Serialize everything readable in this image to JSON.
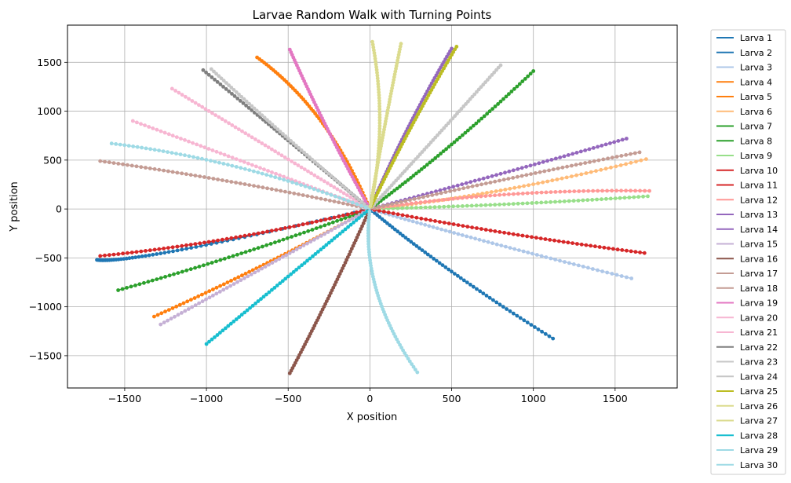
{
  "chart_data": {
    "type": "line",
    "title": "Larvae Random Walk with Turning Points",
    "xlabel": "X position",
    "ylabel": "Y position",
    "xlim": [
      -1850,
      1880
    ],
    "ylim": [
      -1830,
      1880
    ],
    "xticks": [
      -1500,
      -1000,
      -500,
      0,
      500,
      1000,
      1500
    ],
    "yticks": [
      -1500,
      -1000,
      -500,
      0,
      500,
      1000,
      1500
    ],
    "grid": true,
    "legend_position": "outside-right",
    "series": [
      {
        "name": "Larva 1",
        "color": "#1f77b4",
        "end": [
          -1670,
          -520
        ],
        "turn": [
          -1150,
          -415
        ]
      },
      {
        "name": "Larva 2",
        "color": "#1f77b4",
        "end": [
          1120,
          -1325
        ],
        "turn": [
          500,
          -640
        ]
      },
      {
        "name": "Larva 3",
        "color": "#aec7e8",
        "end": [
          1600,
          -710
        ],
        "turn": [
          750,
          -350
        ]
      },
      {
        "name": "Larva 4",
        "color": "#ff7f0e",
        "end": [
          -690,
          1550
        ],
        "turn": [
          -300,
          900
        ]
      },
      {
        "name": "Larva 5",
        "color": "#ff7f0e",
        "end": [
          -1320,
          -1100
        ],
        "turn": [
          -650,
          -570
        ]
      },
      {
        "name": "Larva 6",
        "color": "#ffbb78",
        "end": [
          1690,
          510
        ],
        "turn": [
          800,
          190
        ]
      },
      {
        "name": "Larva 7",
        "color": "#2ca02c",
        "end": [
          1000,
          1410
        ],
        "turn": [
          500,
          660
        ]
      },
      {
        "name": "Larva 8",
        "color": "#2ca02c",
        "end": [
          -1540,
          -830
        ],
        "turn": [
          -760,
          -440
        ]
      },
      {
        "name": "Larva 9",
        "color": "#98df8a",
        "end": [
          1700,
          130
        ],
        "turn": [
          850,
          50
        ]
      },
      {
        "name": "Larva 10",
        "color": "#d62728",
        "end": [
          1680,
          -450
        ],
        "turn": [
          850,
          -250
        ]
      },
      {
        "name": "Larva 11",
        "color": "#d62728",
        "end": [
          -1650,
          -480
        ],
        "turn": [
          -820,
          -290
        ]
      },
      {
        "name": "Larva 12",
        "color": "#ff9896",
        "end": [
          1710,
          185
        ],
        "turn": [
          850,
          150
        ]
      },
      {
        "name": "Larva 13",
        "color": "#9467bd",
        "end": [
          500,
          1640
        ],
        "turn": [
          230,
          820
        ]
      },
      {
        "name": "Larva 14",
        "color": "#9467bd",
        "end": [
          1570,
          720
        ],
        "turn": [
          800,
          360
        ]
      },
      {
        "name": "Larva 15",
        "color": "#c5b0d5",
        "end": [
          -1280,
          -1180
        ],
        "turn": [
          -640,
          -590
        ]
      },
      {
        "name": "Larva 16",
        "color": "#8c564b",
        "end": [
          -490,
          -1680
        ],
        "turn": [
          -240,
          -860
        ]
      },
      {
        "name": "Larva 17",
        "color": "#c49c94",
        "end": [
          1650,
          580
        ],
        "turn": [
          820,
          300
        ]
      },
      {
        "name": "Larva 18",
        "color": "#c49c94",
        "end": [
          -1650,
          490
        ],
        "turn": [
          -820,
          270
        ]
      },
      {
        "name": "Larva 19",
        "color": "#e377c2",
        "end": [
          -490,
          1630
        ],
        "turn": [
          -260,
          820
        ]
      },
      {
        "name": "Larva 20",
        "color": "#f7b6d2",
        "end": [
          -1450,
          900
        ],
        "turn": [
          -720,
          450
        ]
      },
      {
        "name": "Larva 21",
        "color": "#f7b6d2",
        "end": [
          -1210,
          1230
        ],
        "turn": [
          -600,
          610
        ]
      },
      {
        "name": "Larva 22",
        "color": "#7f7f7f",
        "end": [
          -1020,
          1420
        ],
        "turn": [
          -500,
          700
        ]
      },
      {
        "name": "Larva 23",
        "color": "#c7c7c7",
        "end": [
          -970,
          1430
        ],
        "turn": [
          -500,
          720
        ]
      },
      {
        "name": "Larva 24",
        "color": "#c7c7c7",
        "end": [
          800,
          1470
        ],
        "turn": [
          400,
          730
        ]
      },
      {
        "name": "Larva 25",
        "color": "#bcbd22",
        "end": [
          530,
          1660
        ],
        "turn": [
          250,
          830
        ]
      },
      {
        "name": "Larva 26",
        "color": "#dbdb8d",
        "end": [
          15,
          1710
        ],
        "turn": [
          60,
          850
        ]
      },
      {
        "name": "Larva 27",
        "color": "#dbdb8d",
        "end": [
          190,
          1690
        ],
        "turn": [
          90,
          840
        ]
      },
      {
        "name": "Larva 28",
        "color": "#17becf",
        "end": [
          -1000,
          -1380
        ],
        "turn": [
          -500,
          -690
        ]
      },
      {
        "name": "Larva 29",
        "color": "#9edae5",
        "end": [
          290,
          -1670
        ],
        "turn": [
          40,
          -830
        ]
      },
      {
        "name": "Larva 30",
        "color": "#9edae5",
        "end": [
          -1580,
          670
        ],
        "turn": [
          -790,
          420
        ]
      }
    ]
  }
}
